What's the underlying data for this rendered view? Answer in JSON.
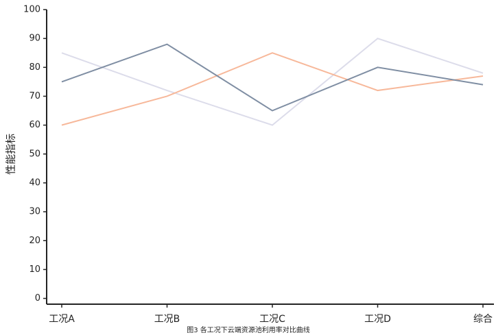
{
  "chart_data": {
    "type": "line",
    "ylabel": "性能指标",
    "caption": "图3 各工况下云端资源池利用率对比曲线",
    "categories": [
      "工况A",
      "工况B",
      "工况C",
      "工况D",
      "综合"
    ],
    "series": [
      {
        "color": "#dcdcea",
        "values": [
          85,
          72,
          60,
          90,
          78
        ]
      },
      {
        "color": "#f7b89a",
        "values": [
          60,
          70,
          85,
          72,
          77
        ]
      },
      {
        "color": "#7f8ea3",
        "values": [
          75,
          88,
          65,
          80,
          74
        ]
      }
    ],
    "ylim": [
      -2,
      100
    ],
    "yticks": [
      0,
      10,
      20,
      30,
      40,
      50,
      60,
      70,
      80,
      90,
      100
    ]
  }
}
